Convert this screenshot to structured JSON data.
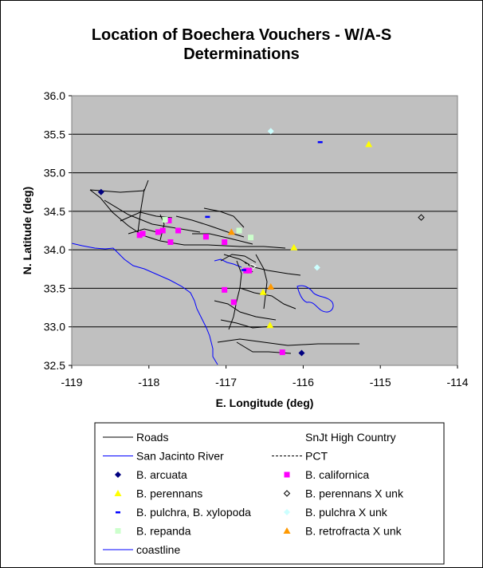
{
  "chart_data": {
    "type": "scatter",
    "title": "Location of Boechera Vouchers - W/A-S",
    "subtitle": "Determinations",
    "xlabel": "E. Longitude (deg)",
    "ylabel": "N. Latitude (deg)",
    "xlim": [
      -119,
      -114
    ],
    "ylim": [
      32.5,
      36.0
    ],
    "x_ticks": [
      "-119",
      "-118",
      "-117",
      "-116",
      "-115",
      "-114"
    ],
    "y_ticks": [
      "32.5",
      "33.0",
      "33.5",
      "34.0",
      "34.5",
      "35.0",
      "35.5",
      "36.0"
    ],
    "grid": "horizontal",
    "plot_background": "#c0c0c0",
    "lines": [
      {
        "name": "Roads",
        "color": "#000000",
        "style": "solid"
      },
      {
        "name": "SnJt High Country",
        "color": "#ffffff",
        "style": "solid"
      },
      {
        "name": "San Jacinto River",
        "color": "#0000ff",
        "style": "solid"
      },
      {
        "name": "PCT",
        "color": "#000000",
        "style": "dashed"
      },
      {
        "name": "coastline",
        "color": "#0000ff",
        "style": "solid"
      }
    ],
    "series": [
      {
        "name": "B. arcuata",
        "marker": "diamond",
        "color": "#000080",
        "points": [
          [
            -118.62,
            34.75
          ],
          [
            -116.02,
            32.66
          ]
        ]
      },
      {
        "name": "B. californica",
        "marker": "square",
        "color": "#ff00ff",
        "points": [
          [
            -118.12,
            34.19
          ],
          [
            -118.08,
            34.21
          ],
          [
            -117.88,
            34.23
          ],
          [
            -117.82,
            34.25
          ],
          [
            -117.74,
            34.38
          ],
          [
            -117.72,
            34.1
          ],
          [
            -117.62,
            34.25
          ],
          [
            -117.26,
            34.17
          ],
          [
            -117.02,
            34.1
          ],
          [
            -116.74,
            33.73
          ],
          [
            -116.7,
            33.73
          ],
          [
            -117.02,
            33.48
          ],
          [
            -116.9,
            33.32
          ],
          [
            -116.27,
            32.67
          ]
        ]
      },
      {
        "name": "B. perennans",
        "marker": "triangle",
        "color": "#ffff00",
        "points": [
          [
            -115.15,
            35.37
          ],
          [
            -116.12,
            34.03
          ],
          [
            -116.52,
            33.45
          ],
          [
            -116.43,
            33.02
          ]
        ]
      },
      {
        "name": "B. perennans X unk",
        "marker": "circle",
        "color": "#000000",
        "points": [
          [
            -114.47,
            34.42
          ]
        ]
      },
      {
        "name": "B. pulchra, B. xylopoda",
        "marker": "dash",
        "color": "#0000ff",
        "points": [
          [
            -115.78,
            35.4
          ],
          [
            -117.24,
            34.43
          ],
          [
            -116.77,
            33.74
          ]
        ]
      },
      {
        "name": "B. pulchra X unk",
        "marker": "diamond",
        "color": "#ccffff",
        "points": [
          [
            -116.42,
            35.54
          ],
          [
            -115.82,
            33.77
          ]
        ]
      },
      {
        "name": "B. repanda",
        "marker": "square",
        "color": "#ccffcc",
        "points": [
          [
            -117.79,
            34.39
          ],
          [
            -116.83,
            34.25
          ],
          [
            -116.68,
            34.16
          ]
        ]
      },
      {
        "name": "B. retrofracta X unk",
        "marker": "triangle",
        "color": "#ff9900",
        "points": [
          [
            -116.93,
            34.23
          ],
          [
            -116.42,
            33.52
          ]
        ]
      }
    ],
    "legend_position": "bottom"
  }
}
